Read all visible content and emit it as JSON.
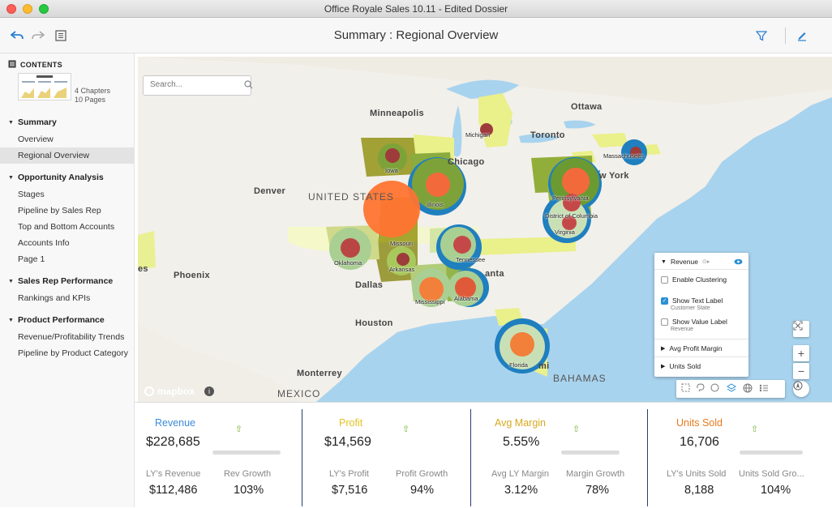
{
  "window": {
    "title": "Office Royale Sales 10.11 - Edited Dossier"
  },
  "toolbar": {
    "page_title": "Summary : Regional Overview"
  },
  "sidebar": {
    "contents_label": "CONTENTS",
    "chapters": "4 Chapters",
    "pages": "10 Pages",
    "sections": [
      {
        "title": "Summary",
        "items": [
          "Overview",
          "Regional Overview"
        ]
      },
      {
        "title": "Opportunity Analysis",
        "items": [
          "Stages",
          "Pipeline by Sales Rep",
          "Top and Bottom Accounts",
          "Accounts Info",
          "Page 1"
        ]
      },
      {
        "title": "Sales Rep Performance",
        "items": [
          "Rankings and KPIs"
        ]
      },
      {
        "title": "Product Performance",
        "items": [
          "Revenue/Profitability Trends",
          "Pipeline by Product Category"
        ]
      }
    ],
    "active_item": "Regional Overview"
  },
  "map": {
    "search_placeholder": "Search...",
    "place_labels": {
      "minneapolis": "Minneapolis",
      "ottawa": "Ottawa",
      "toronto": "Toronto",
      "chicago": "Chicago",
      "denver": "Denver",
      "united_states": "UNITED STATES",
      "new_york": "w York",
      "phoenix": "Phoenix",
      "dallas": "Dallas",
      "atlanta": "anta",
      "houston": "Houston",
      "monterrey": "Monterrey",
      "mexico": "MEXICO",
      "bahamas": "BAHAMAS",
      "miami": "mi",
      "cut_off_left": "es"
    },
    "state_labels": {
      "michigan": "Michigan",
      "iowa": "Iowa",
      "illinois": "Illinois",
      "missouri": "Missouri",
      "pennsylvania": "Pennsylvania",
      "massachusetts": "Massachusetts",
      "district_of_columbia": "District of Columbia",
      "virginia": "Virginia",
      "oklahoma": "Oklahoma",
      "arkansas": "Arkansas",
      "tennessee": "Tennessee",
      "mississippi": "Mississippi",
      "alabama": "Alabama",
      "florida": "Florida"
    },
    "attribution": "mapbox",
    "info_icon_glyph": "i",
    "layer_panel": {
      "metric": "Revenue",
      "enable_clustering": "Enable Clustering",
      "show_text_label": "Show Text Label",
      "text_label_sub": "Customer State",
      "show_value_label": "Show Value Label",
      "value_label_sub": "Revenue",
      "layer_2": "Avg Profit Margin",
      "layer_3": "Units Sold",
      "clustering_checked": false,
      "text_label_checked": true,
      "value_label_checked": false
    },
    "zoom_in": "+",
    "zoom_out": "−"
  },
  "kpis": [
    {
      "name": "Revenue",
      "value": "$228,685",
      "color": "#3b8ad9",
      "sub1_label": "LY's Revenue",
      "sub1_value": "$112,486",
      "sub2_label": "Rev Growth",
      "sub2_value": "103%",
      "trend": "⇧"
    },
    {
      "name": "Profit",
      "value": "$14,569",
      "color": "#e3c221",
      "sub1_label": "LY's Profit",
      "sub1_value": "$7,516",
      "sub2_label": "Profit Growth",
      "sub2_value": "94%",
      "trend": "⇧"
    },
    {
      "name": "Avg Margin",
      "value": "5.55%",
      "color": "#d9a81e",
      "sub1_label": "Avg LY Margin",
      "sub1_value": "3.12%",
      "sub2_label": "Margin Growth",
      "sub2_value": "78%",
      "trend": "⇧"
    },
    {
      "name": "Units Sold",
      "value": "16,706",
      "color": "#e97a1e",
      "sub1_label": "LY's Units Sold",
      "sub1_value": "8,188",
      "sub2_label": "Units Sold Gro...",
      "sub2_value": "104%",
      "trend": "⇧"
    }
  ]
}
